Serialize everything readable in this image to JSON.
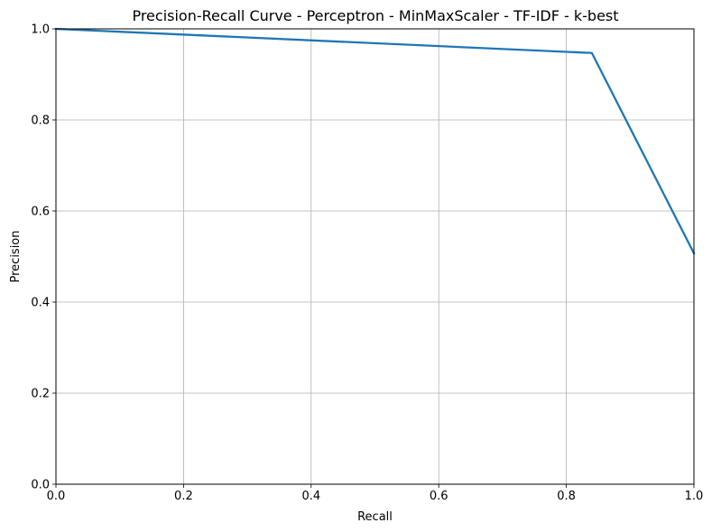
{
  "chart_data": {
    "type": "line",
    "title": "Precision-Recall Curve - Perceptron - MinMaxScaler - TF-IDF - k-best",
    "xlabel": "Recall",
    "ylabel": "Precision",
    "xlim": [
      0.0,
      1.0
    ],
    "ylim": [
      0.0,
      1.0
    ],
    "grid": true,
    "xticks": [
      0.0,
      0.2,
      0.4,
      0.6,
      0.8,
      1.0
    ],
    "yticks": [
      0.0,
      0.2,
      0.4,
      0.6,
      0.8,
      1.0
    ],
    "xtick_labels": [
      "0.0",
      "0.2",
      "0.4",
      "0.6",
      "0.8",
      "1.0"
    ],
    "ytick_labels": [
      "0.0",
      "0.2",
      "0.4",
      "0.6",
      "0.8",
      "1.0"
    ],
    "series": [
      {
        "x": [
          0.0,
          0.84,
          1.0
        ],
        "y": [
          1.0,
          0.947,
          0.507
        ],
        "color": "#1f77b4"
      }
    ]
  }
}
